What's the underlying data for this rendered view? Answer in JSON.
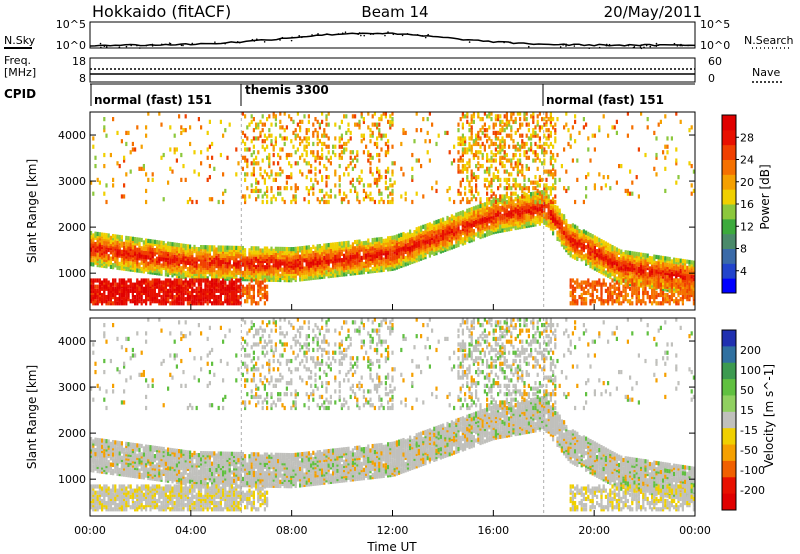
{
  "header": {
    "station": "Hokkaido (fitACF)",
    "beam": "Beam 14",
    "date": "20/May/2011"
  },
  "panels": {
    "nsky": {
      "label": "N.Sky",
      "ticks": [
        "10^5",
        "10^0"
      ]
    },
    "nsearch": {
      "label": "N.Search"
    },
    "freq": {
      "label_1": "Freq.",
      "label_2": "[MHz]",
      "ticks": [
        "18",
        "8"
      ]
    },
    "nave": {
      "label": "Nave",
      "ticks": [
        "60",
        "0"
      ]
    },
    "cpid": {
      "label": "CPID",
      "segments": [
        {
          "label": "normal (fast) 151",
          "start": 0,
          "end": 6
        },
        {
          "label": "themis 3300",
          "start": 6,
          "end": 18
        },
        {
          "label": "normal (fast) 151",
          "start": 18,
          "end": 24
        }
      ]
    }
  },
  "colors": {
    "power": [
      "#0000ff",
      "#2244cc",
      "#3a6aa8",
      "#4a8a6a",
      "#3caa3c",
      "#8cc83c",
      "#f0d000",
      "#f5a000",
      "#f57000",
      "#f04000",
      "#e81000",
      "#e00000"
    ],
    "velocity_pos": [
      "#2030b0",
      "#3070a0",
      "#3c9a50",
      "#60c040",
      "#90d060"
    ],
    "velocity_neg": [
      "#f0d000",
      "#f5a000",
      "#f06000",
      "#e81000",
      "#e00000"
    ],
    "ground_scatter": "#c0c0bc"
  },
  "chart_data": [
    {
      "type": "heatmap",
      "panel": "power",
      "title": "Hokkaido (fitACF)  Beam 14  20/May/2011",
      "xlabel": "",
      "ylabel": "Slant Range [km]",
      "ylim": [
        200,
        4500
      ],
      "yticks": [
        1000,
        2000,
        3000,
        4000
      ],
      "xlim": [
        0,
        24
      ],
      "colorbar": {
        "label": "Power [dB]",
        "range": [
          0,
          32
        ],
        "ticks": [
          4,
          8,
          12,
          16,
          20,
          24,
          28
        ]
      },
      "features": [
        {
          "name": "main band",
          "range_km": [
            [
              0,
              1500
            ],
            [
              4,
              1200
            ],
            [
              8,
              1150
            ],
            [
              12,
              1400
            ],
            [
              14,
              1800
            ],
            [
              16,
              2200
            ],
            [
              18,
              2400
            ],
            [
              19,
              1700
            ],
            [
              21,
              1100
            ],
            [
              24,
              850
            ]
          ],
          "power_db": 26
        },
        {
          "name": "lower band",
          "range_km": [
            [
              0,
              500
            ],
            [
              2,
              500
            ],
            [
              4,
              700
            ],
            [
              6,
              600
            ]
          ],
          "power_db": 30
        },
        {
          "name": "upper patches",
          "range_km": [
            [
              7,
              3600
            ],
            [
              9,
              3300
            ],
            [
              15,
              4200
            ],
            [
              17,
              4300
            ]
          ],
          "power_db": 18
        }
      ]
    },
    {
      "type": "heatmap",
      "panel": "velocity",
      "xlabel": "Time UT",
      "ylabel": "Slant Range [km]",
      "ylim": [
        200,
        4500
      ],
      "yticks": [
        1000,
        2000,
        3000,
        4000
      ],
      "xlim": [
        0,
        24
      ],
      "xticks": [
        "00:00",
        "04:00",
        "08:00",
        "12:00",
        "16:00",
        "20:00",
        "00:00"
      ],
      "colorbar": {
        "label": "Velocity [m s^-1]",
        "ticks": [
          "200",
          "100",
          "50",
          "15",
          "-15",
          "-50",
          "-100",
          "-200"
        ]
      }
    }
  ]
}
